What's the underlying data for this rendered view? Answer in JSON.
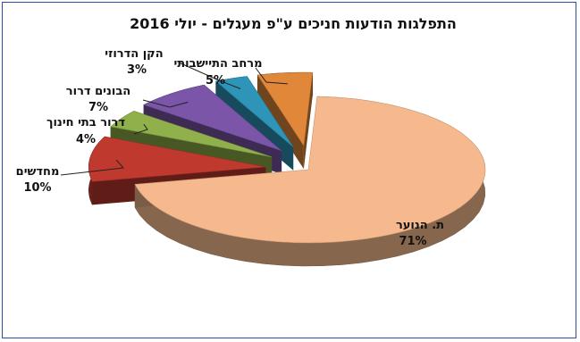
{
  "chart_data": {
    "type": "pie",
    "title": "התפלגות הודעות חניכים ע\"פ מעגלים - יולי 2016",
    "slices": [
      {
        "label": "ת. הנוער",
        "value": 71,
        "value_label": "71%",
        "color": "#f6b98d",
        "exploded": false
      },
      {
        "label": "מחדשים",
        "value": 10,
        "value_label": "10%",
        "color": "#c0392f",
        "exploded": true
      },
      {
        "label": "דרור בתי חינוך",
        "value": 4,
        "value_label": "4%",
        "color": "#8fb04a",
        "exploded": true
      },
      {
        "label": "הבונים דרור",
        "value": 7,
        "value_label": "7%",
        "color": "#7a55a8",
        "exploded": true
      },
      {
        "label": "הקן הדרוזי",
        "value": 3,
        "value_label": "3%",
        "color": "#2e94b8",
        "exploded": true
      },
      {
        "label": "מרחב התיישבותי",
        "value": 5,
        "value_label": "5%",
        "color": "#e0873a",
        "exploded": true
      }
    ]
  }
}
